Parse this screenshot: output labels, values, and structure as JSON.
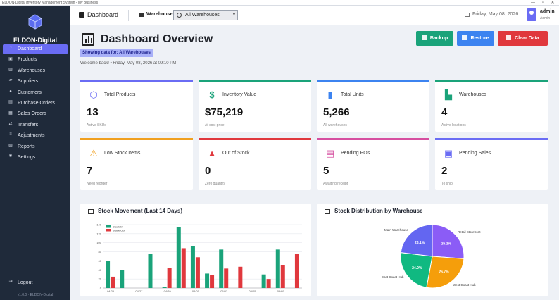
{
  "window": {
    "title": "ELDON-Digital Inventory Management System - My Business",
    "controls": [
      "—",
      "▫",
      "✕"
    ]
  },
  "sidebar": {
    "brand": "ELDON-Digital",
    "items": [
      {
        "label": "Dashboard",
        "icon": "speedometer-icon",
        "active": true
      },
      {
        "label": "Products",
        "icon": "box-icon"
      },
      {
        "label": "Warehouses",
        "icon": "warehouse-icon"
      },
      {
        "label": "Suppliers",
        "icon": "truck-icon"
      },
      {
        "label": "Customers",
        "icon": "users-icon"
      },
      {
        "label": "Purchase Orders",
        "icon": "cart-icon"
      },
      {
        "label": "Sales Orders",
        "icon": "receipt-icon"
      },
      {
        "label": "Transfers",
        "icon": "transfer-icon"
      },
      {
        "label": "Adjustments",
        "icon": "sliders-icon"
      },
      {
        "label": "Reports",
        "icon": "report-icon"
      },
      {
        "label": "Settings",
        "icon": "gear-icon"
      }
    ],
    "logout": "Logout",
    "version": "v1.0.0 · ELDON-Digital"
  },
  "header": {
    "title": "Dashboard",
    "warehouse_label": "Warehouse:",
    "warehouse_value": "All Warehouses",
    "date": "Friday, May 08, 2026",
    "user_name": "admin",
    "user_role": "Admin"
  },
  "page": {
    "title": "Dashboard Overview",
    "filter_chip": "Showing data for: All Warehouses",
    "welcome": "Welcome back!  •  Friday, May 08, 2026 at 09:10 PM",
    "buttons": {
      "backup": "Backup",
      "restore": "Restore",
      "clear": "Clear Data"
    }
  },
  "colors": {
    "accent": "#6a6cf4",
    "backup": "#1aa37a",
    "restore": "#3c83f0",
    "clear": "#e0383d",
    "stock_in": "#1aa37a",
    "stock_out": "#e0383d"
  },
  "cards": [
    {
      "label": "Total Products",
      "value": "13",
      "sub": "Active SKUs",
      "color": "#6a6cf4",
      "icon": "cube-icon"
    },
    {
      "label": "Inventory Value",
      "value": "$75,219",
      "sub": "At cost price",
      "color": "#1aa37a",
      "icon": "money-bag-icon"
    },
    {
      "label": "Total Units",
      "value": "5,266",
      "sub": "All warehouses",
      "color": "#3c83f0",
      "icon": "bar-chart-icon"
    },
    {
      "label": "Warehouses",
      "value": "4",
      "sub": "Active locations",
      "color": "#1aa37a",
      "icon": "factory-icon"
    },
    {
      "label": "Low Stock Items",
      "value": "7",
      "sub": "Need reorder",
      "color": "#f0a020",
      "icon": "warning-icon"
    },
    {
      "label": "Out of Stock",
      "value": "0",
      "sub": "Zero quantity",
      "color": "#e0383d",
      "icon": "siren-icon"
    },
    {
      "label": "Pending POs",
      "value": "5",
      "sub": "Awaiting receipt",
      "color": "#d64fa0",
      "icon": "cart-icon"
    },
    {
      "label": "Pending Sales",
      "value": "2",
      "sub": "To ship",
      "color": "#6a6cf4",
      "icon": "package-icon"
    }
  ],
  "panels": {
    "movement_title": "Stock Movement (Last 14 Days)",
    "distribution_title": "Stock Distribution by Warehouse"
  },
  "chart_data": [
    {
      "type": "bar",
      "title": "Stock Movement (Last 14 Days)",
      "categories": [
        "04/25",
        "",
        "04/27",
        "",
        "04/29",
        "",
        "05/01",
        "",
        "05/03",
        "",
        "05/05",
        "",
        "05/07",
        ""
      ],
      "series": [
        {
          "name": "Stock In",
          "values": [
            60,
            40,
            0,
            75,
            3,
            135,
            93,
            32,
            85,
            0,
            0,
            30,
            85,
            0
          ]
        },
        {
          "name": "Stock Out",
          "values": [
            25,
            0,
            0,
            0,
            45,
            88,
            68,
            28,
            43,
            47,
            0,
            20,
            50,
            75
          ]
        }
      ],
      "ylim": [
        0,
        140
      ],
      "yticks": [
        0,
        20,
        40,
        60,
        80,
        100,
        120,
        140
      ],
      "legend": "top-left",
      "grid": true
    },
    {
      "type": "pie",
      "title": "Stock Distribution by Warehouse",
      "labels": [
        "Retail Storefront",
        "West Coast Hub",
        "East Coast Hub",
        "Main Warehouse"
      ],
      "values": [
        26.2,
        26.7,
        24.0,
        23.1
      ],
      "colors": [
        "#8b5cf6",
        "#f59e0b",
        "#10b981",
        "#6366f1"
      ]
    }
  ]
}
